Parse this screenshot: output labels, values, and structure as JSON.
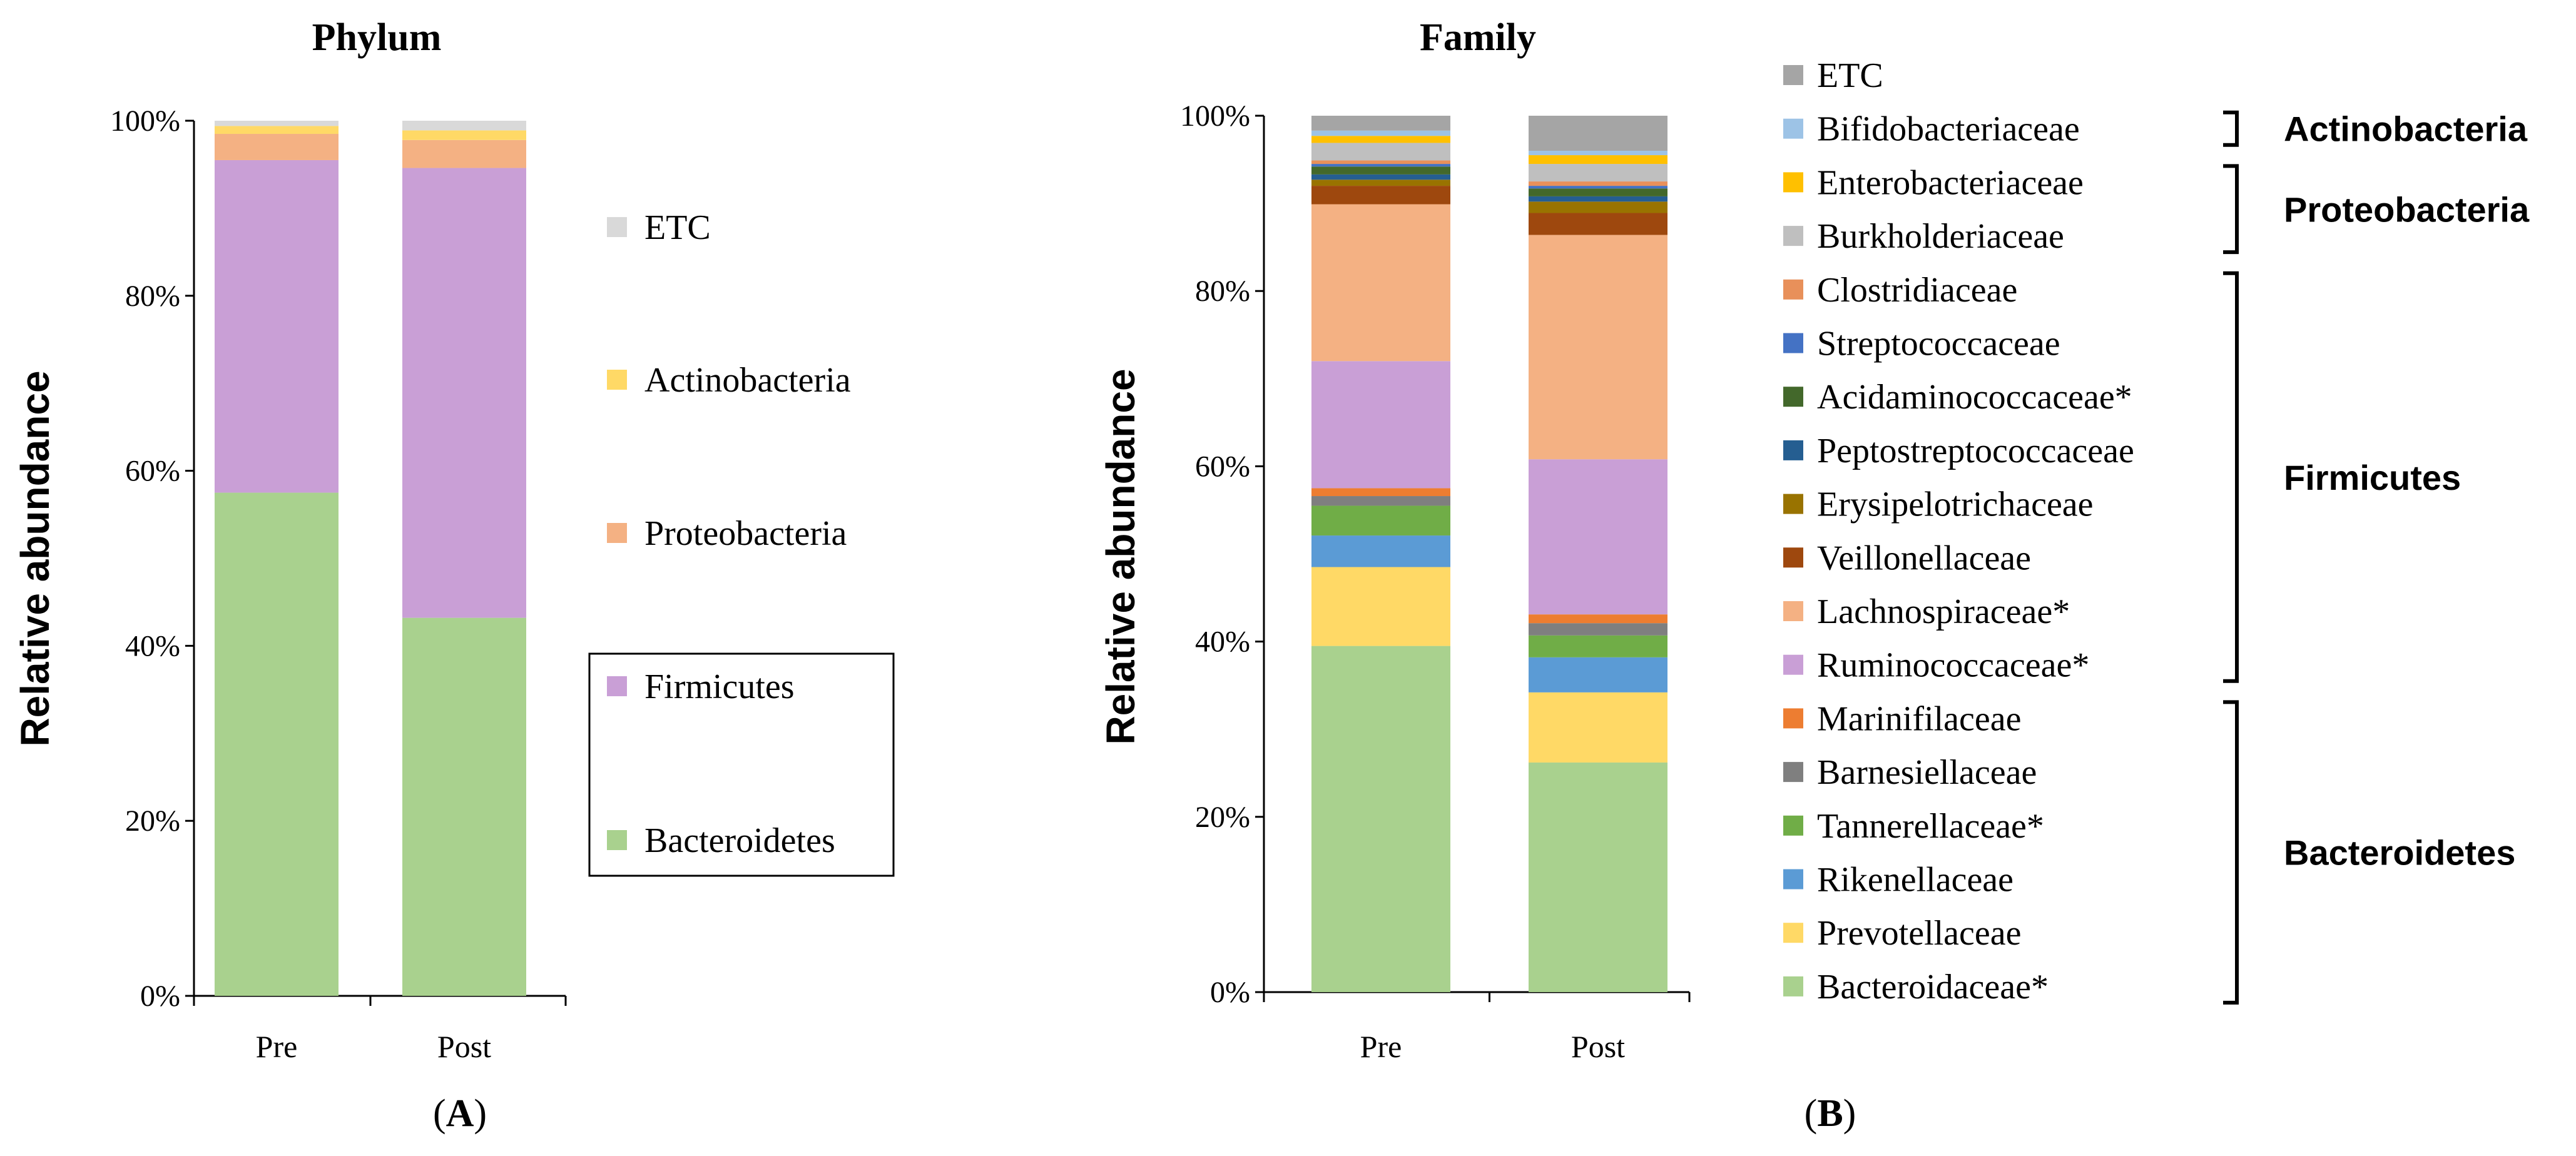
{
  "panel_labels": [
    {
      "open": "(",
      "letter": "A",
      "close": ")"
    },
    {
      "open": "(",
      "letter": "B",
      "close": ")"
    }
  ],
  "chart_data": [
    {
      "type": "bar",
      "stacked": true,
      "title": "Phylum",
      "ylabel": "Relative abundance",
      "xlabel": "",
      "ylim": [
        0,
        100
      ],
      "yticks": [
        "0%",
        "20%",
        "40%",
        "60%",
        "80%",
        "100%"
      ],
      "categories": [
        "Pre",
        "Post"
      ],
      "series": [
        {
          "name": "Bacteroidetes",
          "color": "#a9d18e",
          "values": [
            57.5,
            43.2
          ]
        },
        {
          "name": "Firmicutes",
          "color": "#c99fd6",
          "values": [
            38.0,
            51.4
          ]
        },
        {
          "name": "Proteobacteria",
          "color": "#f4b183",
          "values": [
            3.0,
            3.2
          ]
        },
        {
          "name": "Actinobacteria",
          "color": "#ffd966",
          "values": [
            0.9,
            1.1
          ]
        },
        {
          "name": "ETC",
          "color": "#d9d9d9",
          "values": [
            0.6,
            1.1
          ]
        }
      ],
      "legend_order": [
        "ETC",
        "Actinobacteria",
        "Proteobacteria",
        "Firmicutes",
        "Bacteroidetes"
      ],
      "legend_boxed": [
        "Firmicutes",
        "Bacteroidetes"
      ]
    },
    {
      "type": "bar",
      "stacked": true,
      "title": "Family",
      "ylabel": "Relative abundance",
      "xlabel": "",
      "ylim": [
        0,
        100
      ],
      "yticks": [
        "0%",
        "20%",
        "40%",
        "60%",
        "80%",
        "100%"
      ],
      "categories": [
        "Pre",
        "Post"
      ],
      "series": [
        {
          "name": "Bacteroidaceae*",
          "color": "#a9d18e",
          "values": [
            39.5,
            26.2
          ]
        },
        {
          "name": "Prevotellaceae",
          "color": "#ffd966",
          "values": [
            9.0,
            8.0
          ]
        },
        {
          "name": "Rikenellaceae",
          "color": "#5b9bd5",
          "values": [
            3.6,
            4.0
          ]
        },
        {
          "name": "Tannerellaceae*",
          "color": "#70ad47",
          "values": [
            3.4,
            2.5
          ]
        },
        {
          "name": "Barnesiellaceae",
          "color": "#7f7f7f",
          "values": [
            1.1,
            1.4
          ]
        },
        {
          "name": "Marinifilaceae",
          "color": "#ed7d31",
          "values": [
            0.9,
            1.0
          ]
        },
        {
          "name": "Ruminococcaceae*",
          "color": "#c99fd6",
          "values": [
            14.5,
            17.7
          ]
        },
        {
          "name": "Lachnospiraceae*",
          "color": "#f4b183",
          "values": [
            17.9,
            25.6
          ]
        },
        {
          "name": "Veillonellaceae",
          "color": "#9e480e",
          "values": [
            2.1,
            2.5
          ]
        },
        {
          "name": "Erysipelotrichaceae",
          "color": "#997300",
          "values": [
            0.7,
            1.3
          ]
        },
        {
          "name": "Peptostreptococcaceae",
          "color": "#255e91",
          "values": [
            0.6,
            0.6
          ]
        },
        {
          "name": "Acidaminococcaceae*",
          "color": "#43682b",
          "values": [
            0.9,
            0.9
          ]
        },
        {
          "name": "Streptococcaceae",
          "color": "#4472c4",
          "values": [
            0.3,
            0.3
          ]
        },
        {
          "name": "Clostridiaceae",
          "color": "#e8905a",
          "values": [
            0.4,
            0.5
          ]
        },
        {
          "name": "Burkholderiaceae",
          "color": "#bfbfbf",
          "values": [
            2.0,
            2.0
          ]
        },
        {
          "name": "Enterobacteriaceae",
          "color": "#ffc000",
          "values": [
            0.8,
            1.0
          ]
        },
        {
          "name": "Bifidobacteriaceae",
          "color": "#9dc3e6",
          "values": [
            0.6,
            0.5
          ]
        },
        {
          "name": "ETC",
          "color": "#a5a5a5",
          "values": [
            1.7,
            4.0
          ]
        }
      ],
      "legend_order": [
        "ETC",
        "Bifidobacteriaceae",
        "Enterobacteriaceae",
        "Burkholderiaceae",
        "Clostridiaceae",
        "Streptococcaceae",
        "Acidaminococcaceae*",
        "Peptostreptococcaceae",
        "Erysipelotrichaceae",
        "Veillonellaceae",
        "Lachnospiraceae*",
        "Ruminococcaceae*",
        "Marinifilaceae",
        "Barnesiellaceae",
        "Tannerellaceae*",
        "Rikenellaceae",
        "Prevotellaceae",
        "Bacteroidaceae*"
      ],
      "phylum_groups": [
        {
          "label": "Actinobacteria",
          "members": [
            "Bifidobacteriaceae"
          ]
        },
        {
          "label": "Proteobacteria",
          "members": [
            "Enterobacteriaceae",
            "Burkholderiaceae"
          ]
        },
        {
          "label": "Firmicutes",
          "members": [
            "Clostridiaceae",
            "Streptococcaceae",
            "Acidaminococcaceae*",
            "Peptostreptococcaceae",
            "Erysipelotrichaceae",
            "Veillonellaceae",
            "Lachnospiraceae*",
            "Ruminococcaceae*"
          ]
        },
        {
          "label": "Bacteroidetes",
          "members": [
            "Marinifilaceae",
            "Barnesiellaceae",
            "Tannerellaceae*",
            "Rikenellaceae",
            "Prevotellaceae",
            "Bacteroidaceae*"
          ]
        }
      ]
    }
  ]
}
